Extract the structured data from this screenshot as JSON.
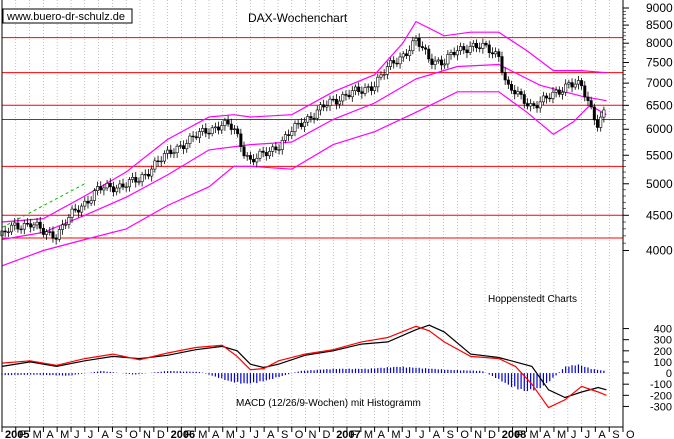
{
  "watermark": "www.buero-dr-schulz.de",
  "source_label": "Hoppenstedt Charts",
  "chart_data": [
    {
      "type": "candlestick",
      "title": "DAX-Wochenchart",
      "y_scale": "log",
      "ylim": [
        3600,
        9000
      ],
      "yticks": [
        9000,
        8500,
        8000,
        7500,
        7000,
        6500,
        6000,
        5500,
        5000,
        4500,
        4000
      ],
      "horizontal_levels": [
        8150,
        7250,
        6500,
        6200,
        5300,
        4500,
        4170
      ],
      "trendline_dashed": [
        [
          2005.0,
          4320
        ],
        [
          2005.5,
          5000
        ]
      ],
      "price_path": [
        [
          2005.0,
          4200
        ],
        [
          2005.08,
          4350
        ],
        [
          2005.17,
          4380
        ],
        [
          2005.25,
          4250
        ],
        [
          2005.33,
          4220
        ],
        [
          2005.42,
          4500
        ],
        [
          2005.5,
          4700
        ],
        [
          2005.58,
          4900
        ],
        [
          2005.67,
          4950
        ],
        [
          2005.75,
          5000
        ],
        [
          2005.83,
          5050
        ],
        [
          2005.92,
          5350
        ],
        [
          2006.0,
          5500
        ],
        [
          2006.08,
          5700
        ],
        [
          2006.17,
          5850
        ],
        [
          2006.25,
          6000
        ],
        [
          2006.33,
          6100
        ],
        [
          2006.4,
          6000
        ],
        [
          2006.46,
          5600
        ],
        [
          2006.5,
          5400
        ],
        [
          2006.58,
          5500
        ],
        [
          2006.67,
          5700
        ],
        [
          2006.75,
          5950
        ],
        [
          2006.83,
          6200
        ],
        [
          2006.92,
          6400
        ],
        [
          2007.0,
          6600
        ],
        [
          2007.08,
          6750
        ],
        [
          2007.17,
          6800
        ],
        [
          2007.25,
          7000
        ],
        [
          2007.33,
          7350
        ],
        [
          2007.42,
          7700
        ],
        [
          2007.5,
          8050
        ],
        [
          2007.58,
          7600
        ],
        [
          2007.67,
          7500
        ],
        [
          2007.75,
          7800
        ],
        [
          2007.83,
          7950
        ],
        [
          2007.92,
          7850
        ],
        [
          2008.0,
          7700
        ],
        [
          2008.05,
          6900
        ],
        [
          2008.12,
          6700
        ],
        [
          2008.2,
          6500
        ],
        [
          2008.28,
          6600
        ],
        [
          2008.35,
          6800
        ],
        [
          2008.42,
          7000
        ],
        [
          2008.5,
          6900
        ],
        [
          2008.55,
          6500
        ],
        [
          2008.6,
          6100
        ],
        [
          2008.65,
          6450
        ]
      ],
      "moving_average": [
        [
          2005.0,
          4150
        ],
        [
          2005.25,
          4250
        ],
        [
          2005.5,
          4500
        ],
        [
          2005.75,
          4780
        ],
        [
          2006.0,
          5150
        ],
        [
          2006.25,
          5600
        ],
        [
          2006.5,
          5700
        ],
        [
          2006.75,
          5750
        ],
        [
          2007.0,
          6200
        ],
        [
          2007.25,
          6550
        ],
        [
          2007.5,
          7100
        ],
        [
          2007.75,
          7400
        ],
        [
          2008.0,
          7450
        ],
        [
          2008.25,
          6950
        ],
        [
          2008.5,
          6700
        ],
        [
          2008.65,
          6600
        ]
      ],
      "band_upper": [
        [
          2005.0,
          4400
        ],
        [
          2005.25,
          4450
        ],
        [
          2005.5,
          4800
        ],
        [
          2005.75,
          5200
        ],
        [
          2006.0,
          5800
        ],
        [
          2006.25,
          6250
        ],
        [
          2006.4,
          6300
        ],
        [
          2006.5,
          6250
        ],
        [
          2006.75,
          6300
        ],
        [
          2007.0,
          6800
        ],
        [
          2007.25,
          7200
        ],
        [
          2007.42,
          8000
        ],
        [
          2007.5,
          8600
        ],
        [
          2007.67,
          8200
        ],
        [
          2007.83,
          8300
        ],
        [
          2008.0,
          8300
        ],
        [
          2008.17,
          7800
        ],
        [
          2008.33,
          7300
        ],
        [
          2008.5,
          7300
        ],
        [
          2008.65,
          7250
        ]
      ],
      "band_lower": [
        [
          2005.0,
          3800
        ],
        [
          2005.25,
          4000
        ],
        [
          2005.5,
          4150
        ],
        [
          2005.75,
          4300
        ],
        [
          2006.0,
          4650
        ],
        [
          2006.25,
          4950
        ],
        [
          2006.4,
          5300
        ],
        [
          2006.5,
          5300
        ],
        [
          2006.75,
          5250
        ],
        [
          2007.0,
          5700
        ],
        [
          2007.25,
          5950
        ],
        [
          2007.5,
          6350
        ],
        [
          2007.75,
          6800
        ],
        [
          2008.0,
          6800
        ],
        [
          2008.17,
          6350
        ],
        [
          2008.33,
          5900
        ],
        [
          2008.45,
          6150
        ],
        [
          2008.55,
          6500
        ],
        [
          2008.65,
          6300
        ]
      ]
    },
    {
      "type": "line",
      "title": "MACD (12/26/9-Wochen) mit Histogramm",
      "ylim": [
        -350,
        450
      ],
      "yticks": [
        400,
        300,
        200,
        100,
        0,
        -100,
        -200,
        -300
      ],
      "series": [
        {
          "color": "#000000",
          "x": [
            2005.0,
            2005.17,
            2005.33,
            2005.5,
            2005.67,
            2005.83,
            2006.0,
            2006.17,
            2006.33,
            2006.42,
            2006.5,
            2006.58,
            2006.67,
            2006.83,
            2007.0,
            2007.17,
            2007.33,
            2007.5,
            2007.58,
            2007.67,
            2007.83,
            2008.0,
            2008.1,
            2008.2,
            2008.3,
            2008.4,
            2008.5,
            2008.6,
            2008.65
          ],
          "y": [
            60,
            100,
            60,
            110,
            150,
            130,
            160,
            210,
            240,
            200,
            80,
            50,
            80,
            160,
            200,
            260,
            280,
            390,
            430,
            370,
            170,
            140,
            100,
            60,
            -150,
            -220,
            -170,
            -130,
            -150
          ]
        },
        {
          "color": "#ff0000",
          "x": [
            2005.0,
            2005.17,
            2005.33,
            2005.5,
            2005.67,
            2005.83,
            2006.0,
            2006.17,
            2006.33,
            2006.42,
            2006.5,
            2006.58,
            2006.67,
            2006.83,
            2007.0,
            2007.17,
            2007.33,
            2007.5,
            2007.58,
            2007.67,
            2007.83,
            2008.0,
            2008.1,
            2008.2,
            2008.3,
            2008.4,
            2008.5,
            2008.6,
            2008.65
          ],
          "y": [
            90,
            110,
            70,
            130,
            170,
            120,
            180,
            230,
            250,
            150,
            30,
            40,
            110,
            170,
            210,
            280,
            320,
            420,
            380,
            280,
            150,
            130,
            60,
            -100,
            -310,
            -240,
            -120,
            -170,
            -200
          ]
        }
      ],
      "histogram": {
        "color": "#0000cc",
        "x": [
          2005.0,
          2005.2,
          2005.4,
          2005.6,
          2005.8,
          2006.0,
          2006.2,
          2006.3,
          2006.38,
          2006.46,
          2006.54,
          2006.62,
          2006.8,
          2007.0,
          2007.2,
          2007.4,
          2007.5,
          2007.6,
          2007.7,
          2007.9,
          2008.0,
          2008.08,
          2008.16,
          2008.24,
          2008.32,
          2008.4,
          2008.48,
          2008.56,
          2008.64
        ],
        "y": [
          -20,
          -15,
          -25,
          20,
          -15,
          20,
          10,
          -40,
          -80,
          -100,
          -90,
          -60,
          20,
          40,
          40,
          60,
          50,
          40,
          30,
          20,
          -60,
          -130,
          -170,
          -150,
          -60,
          60,
          80,
          40,
          20
        ]
      }
    }
  ],
  "x_axis": {
    "ticks": [
      {
        "x": 2005.0,
        "label": "2005",
        "bold": true
      },
      {
        "x": 2005.083,
        "label": "F"
      },
      {
        "x": 2005.167,
        "label": "M"
      },
      {
        "x": 2005.25,
        "label": "A"
      },
      {
        "x": 2005.333,
        "label": "M"
      },
      {
        "x": 2005.417,
        "label": "J"
      },
      {
        "x": 2005.5,
        "label": "J"
      },
      {
        "x": 2005.583,
        "label": "A"
      },
      {
        "x": 2005.667,
        "label": "S"
      },
      {
        "x": 2005.75,
        "label": "O"
      },
      {
        "x": 2005.833,
        "label": "N"
      },
      {
        "x": 2005.917,
        "label": "D"
      },
      {
        "x": 2006.0,
        "label": "2006",
        "bold": true
      },
      {
        "x": 2006.083,
        "label": "F"
      },
      {
        "x": 2006.167,
        "label": "M"
      },
      {
        "x": 2006.25,
        "label": "A"
      },
      {
        "x": 2006.333,
        "label": "M"
      },
      {
        "x": 2006.417,
        "label": "J"
      },
      {
        "x": 2006.5,
        "label": "J"
      },
      {
        "x": 2006.583,
        "label": "A"
      },
      {
        "x": 2006.667,
        "label": "S"
      },
      {
        "x": 2006.75,
        "label": "O"
      },
      {
        "x": 2006.833,
        "label": "N"
      },
      {
        "x": 2006.917,
        "label": "D"
      },
      {
        "x": 2007.0,
        "label": "2007",
        "bold": true
      },
      {
        "x": 2007.083,
        "label": "F"
      },
      {
        "x": 2007.167,
        "label": "M"
      },
      {
        "x": 2007.25,
        "label": "A"
      },
      {
        "x": 2007.333,
        "label": "M"
      },
      {
        "x": 2007.417,
        "label": "J"
      },
      {
        "x": 2007.5,
        "label": "J"
      },
      {
        "x": 2007.583,
        "label": "A"
      },
      {
        "x": 2007.667,
        "label": "S"
      },
      {
        "x": 2007.75,
        "label": "O"
      },
      {
        "x": 2007.833,
        "label": "N"
      },
      {
        "x": 2007.917,
        "label": "D"
      },
      {
        "x": 2008.0,
        "label": "2008",
        "bold": true
      },
      {
        "x": 2008.083,
        "label": "F"
      },
      {
        "x": 2008.167,
        "label": "M"
      },
      {
        "x": 2008.25,
        "label": "A"
      },
      {
        "x": 2008.333,
        "label": "M"
      },
      {
        "x": 2008.417,
        "label": "J"
      },
      {
        "x": 2008.5,
        "label": "J"
      },
      {
        "x": 2008.583,
        "label": "A"
      },
      {
        "x": 2008.667,
        "label": "S"
      },
      {
        "x": 2008.75,
        "label": "O"
      }
    ],
    "range": [
      2005.0,
      2008.75
    ]
  },
  "colors": {
    "price": "#000000",
    "bands": "#ff00ff",
    "levels": "#ff0000",
    "trendline": "#00bb00",
    "macd": "#000000",
    "signal": "#ff0000",
    "histogram": "#0000cc",
    "grid": "#999999"
  }
}
